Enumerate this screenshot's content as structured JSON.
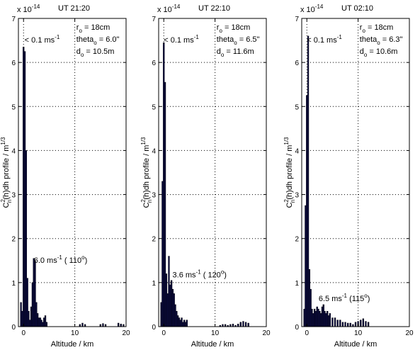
{
  "chart_data": [
    {
      "type": "bar",
      "title": "UT 21:20",
      "exponent_label": "x 10",
      "exponent_sup": "-14",
      "xlabel": "Altitude / km",
      "ylabel_main": "C",
      "ylabel_sup": "2",
      "ylabel_sub": "n",
      "ylabel_rest": "(h)dh profile / m",
      "ylabel_unit_sup": "1/3",
      "xlim": [
        -1,
        20
      ],
      "ylim": [
        0,
        7
      ],
      "xticks": [
        "0",
        "10",
        "20"
      ],
      "yticks": [
        "0",
        "1",
        "2",
        "3",
        "4",
        "5",
        "6",
        "7"
      ],
      "grid": true,
      "bar_color": "#0b0b45",
      "params": {
        "r_label": "r",
        "r_sub": "o",
        "r_value": " = 18cm",
        "theta_label": "theta",
        "theta_sub": "o",
        "theta_value": " = 6.0\"",
        "d_label": "d",
        "d_sub": "o",
        "d_value": " = 10.5m"
      },
      "ann_top": {
        "text": "< 0.1 ms",
        "sup": "-1",
        "x": 0.2,
        "y": 6.45
      },
      "ann_wind": {
        "text": "6.0 ms",
        "sup": "-1",
        "text2": " ( 110",
        "sup2": "o",
        "text3": ")",
        "x": 2.0,
        "y": 1.45
      },
      "bar_width": 0.25,
      "x": [
        -0.5,
        -0.25,
        0,
        0.25,
        0.5,
        0.75,
        1,
        1.25,
        1.5,
        1.75,
        2,
        2.25,
        2.5,
        2.75,
        3,
        3.25,
        3.5,
        3.75,
        4,
        4.25,
        4.5,
        11,
        11.5,
        12,
        15,
        15.5,
        16,
        18.5,
        19,
        19.5
      ],
      "values": [
        0.55,
        0.35,
        6.35,
        6.25,
        4.0,
        1.1,
        0.35,
        0.15,
        0.45,
        1.0,
        1.55,
        1.5,
        0.55,
        0.3,
        0.2,
        0.2,
        0.15,
        0.1,
        0.2,
        0.25,
        0.1,
        0.05,
        0.08,
        0.05,
        0.05,
        0.07,
        0.05,
        0.08,
        0.06,
        0.05
      ]
    },
    {
      "type": "bar",
      "title": "UT 22:10",
      "exponent_label": "x 10",
      "exponent_sup": "-14",
      "xlabel": "Altitude / km",
      "ylabel_main": "C",
      "ylabel_sup": "2",
      "ylabel_sub": "n",
      "ylabel_rest": "(h)dh profile / m",
      "ylabel_unit_sup": "1/3",
      "xlim": [
        -1,
        20
      ],
      "ylim": [
        0,
        7
      ],
      "xticks": [
        "0",
        "10",
        "20"
      ],
      "yticks": [
        "0",
        "1",
        "2",
        "3",
        "4",
        "5",
        "6",
        "7"
      ],
      "grid": true,
      "bar_color": "#0b0b45",
      "params": {
        "r_label": "r",
        "r_sub": "o",
        "r_value": " = 18cm",
        "theta_label": "theta",
        "theta_sub": "o",
        "theta_value": " = 6.5\"",
        "d_label": "d",
        "d_sub": "o",
        "d_value": " = 11.6m"
      },
      "ann_top": {
        "text": "< 0.1 ms",
        "sup": "-1",
        "x": 0.0,
        "y": 6.45
      },
      "ann_wind": {
        "text": "3.6 ms",
        "sup": "-1",
        "text2": " ( 120",
        "sup2": "o",
        "text3": ")",
        "x": 1.7,
        "y": 1.12
      },
      "bar_width": 0.25,
      "x": [
        -0.5,
        -0.25,
        0,
        0.25,
        0.5,
        0.75,
        1,
        1.25,
        1.5,
        1.75,
        2,
        2.25,
        2.5,
        2.75,
        3,
        3.25,
        3.5,
        3.75,
        4,
        4.25,
        4.5,
        11,
        11.5,
        12,
        12.5,
        13,
        13.5,
        14,
        14.5,
        15,
        15.5,
        16,
        16.5
      ],
      "values": [
        0.55,
        3.3,
        6.45,
        5.55,
        1.2,
        0.75,
        1.6,
        0.95,
        1.05,
        0.85,
        0.75,
        0.5,
        0.35,
        0.25,
        0.2,
        0.15,
        0.2,
        0.1,
        0.15,
        0.1,
        0.15,
        0.03,
        0.05,
        0.05,
        0.03,
        0.05,
        0.06,
        0.03,
        0.06,
        0.1,
        0.12,
        0.1,
        0.08
      ]
    },
    {
      "type": "bar",
      "title": "UT 02:10",
      "exponent_label": "x 10",
      "exponent_sup": "-14",
      "xlabel": "Altitude / km",
      "ylabel_main": "C",
      "ylabel_sup": "2",
      "ylabel_sub": "n",
      "ylabel_rest": "(h)dh profile / m",
      "ylabel_unit_sup": "1/3",
      "xlim": [
        -1,
        20
      ],
      "ylim": [
        0,
        7
      ],
      "xticks": [
        "0",
        "10",
        "20"
      ],
      "yticks": [
        "0",
        "1",
        "2",
        "3",
        "4",
        "5",
        "6",
        "7"
      ],
      "grid": true,
      "bar_color": "#0b0b45",
      "params": {
        "r_label": "r",
        "r_sub": "o",
        "r_value": " = 18cm",
        "theta_label": "theta",
        "theta_sub": "o",
        "theta_value": " = 6.3\"",
        "d_label": "d",
        "d_sub": "o",
        "d_value": " = 10.6m"
      },
      "ann_top": {
        "text": "< 0.1 ms",
        "sup": "-1",
        "x": 0.0,
        "y": 6.45
      },
      "ann_wind": {
        "text": "6.5 ms",
        "sup": "-1",
        "text2": " (115",
        "sup2": "o",
        "text3": ")",
        "x": 2.3,
        "y": 0.58
      },
      "bar_width": 0.25,
      "x": [
        -0.5,
        -0.25,
        0,
        0.25,
        0.5,
        0.75,
        1,
        1.25,
        1.5,
        1.75,
        2,
        2.25,
        2.5,
        2.75,
        3,
        3.25,
        3.5,
        3.75,
        4,
        4.25,
        4.5,
        5,
        5.5,
        6,
        6.5,
        7,
        7.5,
        8,
        8.5,
        9,
        9.5,
        10,
        10.5,
        11,
        11.5,
        12
      ],
      "values": [
        0.4,
        2.75,
        5.25,
        6.6,
        1.3,
        0.85,
        0.4,
        0.3,
        0.4,
        0.35,
        0.45,
        0.4,
        0.35,
        0.3,
        0.45,
        0.5,
        0.35,
        0.3,
        0.35,
        0.25,
        0.3,
        0.2,
        0.2,
        0.15,
        0.15,
        0.1,
        0.1,
        0.08,
        0.08,
        0.05,
        0.1,
        0.12,
        0.15,
        0.18,
        0.12,
        0.1
      ]
    }
  ]
}
